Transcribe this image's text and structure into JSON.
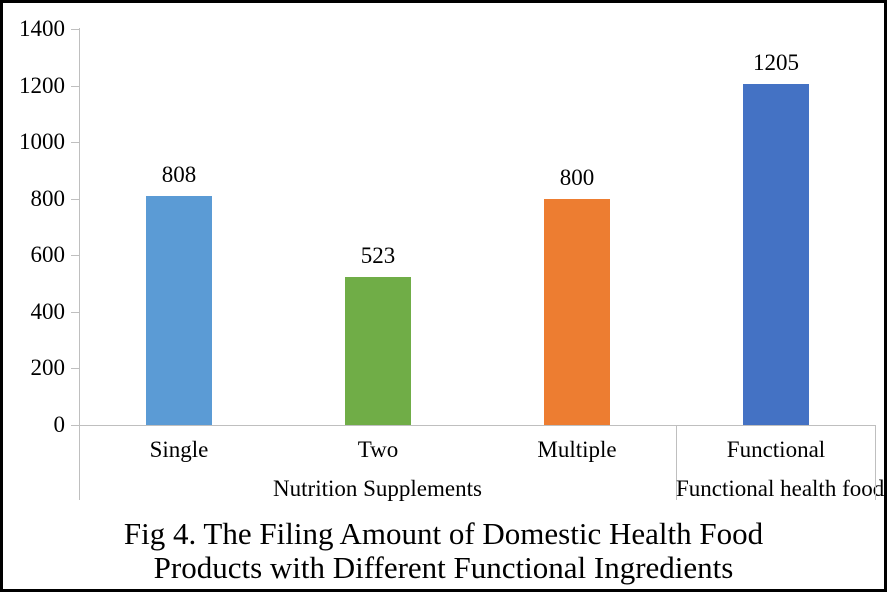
{
  "figure": {
    "title_lines": [
      "Fig 4. The Filing Amount of Domestic Health Food",
      "Products with Different Functional Ingredients"
    ]
  },
  "chart_data": {
    "type": "bar",
    "title": "Fig 4. The Filing Amount of Domestic Health Food Products with Different Functional Ingredients",
    "categories": [
      "Single",
      "Two",
      "Multiple",
      "Functional"
    ],
    "values": [
      808,
      523,
      800,
      1205
    ],
    "value_labels": [
      "808",
      "523",
      "800",
      "1205"
    ],
    "bar_colors": [
      "#5B9BD5",
      "#70AD47",
      "#ED7D31",
      "#4472C4"
    ],
    "groups": [
      {
        "label": "Nutrition Supplements",
        "start": 0,
        "end": 2
      },
      {
        "label": "Functional health food",
        "start": 3,
        "end": 3
      }
    ],
    "xlabel": "",
    "ylabel": "",
    "ylim": [
      0,
      1400
    ],
    "yticks": [
      0,
      200,
      400,
      600,
      800,
      1000,
      1200,
      1400
    ],
    "ytick_labels": [
      "0",
      "200",
      "400",
      "600",
      "800",
      "1000",
      "1200",
      "1400"
    ],
    "grid": false,
    "legend": false,
    "data_labels": true,
    "axis_color": "#BFBFBF",
    "text_color": "#000000",
    "frame_color": "#000000",
    "background_color": "#FFFFFF"
  }
}
